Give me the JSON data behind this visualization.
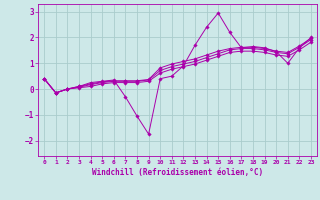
{
  "xlabel": "Windchill (Refroidissement éolien,°C)",
  "ylabel": "",
  "xlim": [
    -0.5,
    23.5
  ],
  "ylim": [
    -2.6,
    3.3
  ],
  "yticks": [
    -2,
    -1,
    0,
    1,
    2,
    3
  ],
  "xticks": [
    0,
    1,
    2,
    3,
    4,
    5,
    6,
    7,
    8,
    9,
    10,
    11,
    12,
    13,
    14,
    15,
    16,
    17,
    18,
    19,
    20,
    21,
    22,
    23
  ],
  "background_color": "#cde8e8",
  "grid_color": "#aacccc",
  "line_color": "#aa00aa",
  "series": [
    [
      0.4,
      -0.15,
      0.0,
      0.1,
      0.25,
      0.3,
      0.35,
      -0.3,
      -1.05,
      -1.75,
      0.4,
      0.5,
      0.9,
      1.7,
      2.4,
      2.95,
      2.2,
      1.6,
      1.65,
      1.6,
      1.45,
      1.0,
      1.6,
      2.0
    ],
    [
      0.4,
      -0.15,
      0.0,
      0.1,
      0.2,
      0.28,
      0.32,
      0.32,
      0.32,
      0.37,
      0.82,
      0.97,
      1.07,
      1.17,
      1.32,
      1.47,
      1.57,
      1.62,
      1.62,
      1.57,
      1.47,
      1.42,
      1.67,
      1.97
    ],
    [
      0.4,
      -0.15,
      0.0,
      0.07,
      0.17,
      0.25,
      0.3,
      0.3,
      0.3,
      0.35,
      0.72,
      0.87,
      0.97,
      1.07,
      1.22,
      1.37,
      1.52,
      1.57,
      1.57,
      1.52,
      1.42,
      1.37,
      1.62,
      1.92
    ],
    [
      0.4,
      -0.15,
      0.0,
      0.05,
      0.1,
      0.2,
      0.25,
      0.25,
      0.25,
      0.3,
      0.62,
      0.77,
      0.87,
      0.97,
      1.12,
      1.27,
      1.42,
      1.47,
      1.47,
      1.42,
      1.32,
      1.27,
      1.52,
      1.82
    ]
  ]
}
